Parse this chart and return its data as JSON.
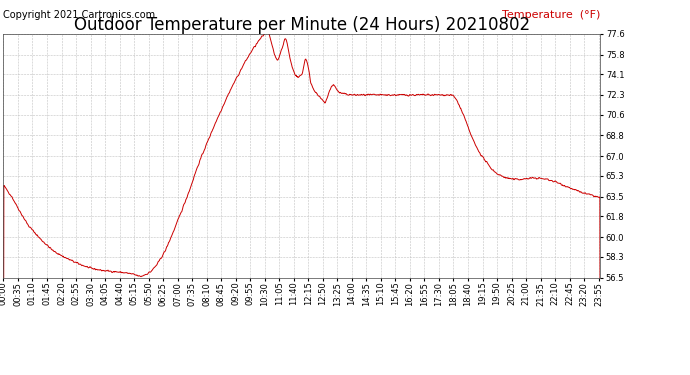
{
  "title": "Outdoor Temperature per Minute (24 Hours) 20210802",
  "copyright": "Copyright 2021 Cartronics.com",
  "legend_label": "Temperature  (°F)",
  "line_color": "#cc0000",
  "background_color": "#ffffff",
  "grid_color": "#bbbbbb",
  "ylim": [
    56.5,
    77.6
  ],
  "yticks": [
    56.5,
    58.3,
    60.0,
    61.8,
    63.5,
    65.3,
    67.0,
    68.8,
    70.6,
    72.3,
    74.1,
    75.8,
    77.6
  ],
  "title_fontsize": 12,
  "copyright_fontsize": 7,
  "legend_fontsize": 8,
  "tick_fontsize": 6,
  "waypoints": [
    [
      0,
      64.5
    ],
    [
      20,
      63.5
    ],
    [
      40,
      62.2
    ],
    [
      60,
      61.0
    ],
    [
      90,
      59.8
    ],
    [
      120,
      58.8
    ],
    [
      150,
      58.2
    ],
    [
      180,
      57.7
    ],
    [
      210,
      57.3
    ],
    [
      240,
      57.1
    ],
    [
      270,
      57.0
    ],
    [
      295,
      56.9
    ],
    [
      310,
      56.8
    ],
    [
      320,
      56.7
    ],
    [
      328,
      56.6
    ],
    [
      333,
      56.6
    ],
    [
      338,
      56.7
    ],
    [
      345,
      56.8
    ],
    [
      355,
      57.0
    ],
    [
      370,
      57.6
    ],
    [
      390,
      58.8
    ],
    [
      410,
      60.5
    ],
    [
      430,
      62.3
    ],
    [
      450,
      64.2
    ],
    [
      465,
      65.8
    ],
    [
      480,
      67.2
    ],
    [
      495,
      68.5
    ],
    [
      510,
      69.8
    ],
    [
      525,
      71.0
    ],
    [
      540,
      72.2
    ],
    [
      555,
      73.3
    ],
    [
      570,
      74.3
    ],
    [
      580,
      75.0
    ],
    [
      590,
      75.6
    ],
    [
      600,
      76.2
    ],
    [
      610,
      76.7
    ],
    [
      618,
      77.1
    ],
    [
      625,
      77.4
    ],
    [
      630,
      77.6
    ],
    [
      635,
      77.7
    ],
    [
      638,
      77.8
    ],
    [
      641,
      77.5
    ],
    [
      645,
      77.0
    ],
    [
      649,
      76.4
    ],
    [
      653,
      75.8
    ],
    [
      657,
      75.5
    ],
    [
      661,
      75.3
    ],
    [
      665,
      75.6
    ],
    [
      669,
      76.1
    ],
    [
      673,
      76.5
    ],
    [
      677,
      77.0
    ],
    [
      681,
      77.2
    ],
    [
      684,
      76.8
    ],
    [
      687,
      76.2
    ],
    [
      690,
      75.6
    ],
    [
      694,
      75.0
    ],
    [
      698,
      74.5
    ],
    [
      703,
      74.1
    ],
    [
      710,
      73.8
    ],
    [
      720,
      74.1
    ],
    [
      728,
      75.5
    ],
    [
      732,
      75.2
    ],
    [
      736,
      74.5
    ],
    [
      740,
      73.5
    ],
    [
      745,
      73.0
    ],
    [
      750,
      72.7
    ],
    [
      755,
      72.4
    ],
    [
      760,
      72.2
    ],
    [
      765,
      72.0
    ],
    [
      770,
      71.8
    ],
    [
      775,
      71.6
    ],
    [
      780,
      72.0
    ],
    [
      785,
      72.5
    ],
    [
      790,
      73.0
    ],
    [
      795,
      73.2
    ],
    [
      800,
      73.0
    ],
    [
      805,
      72.7
    ],
    [
      810,
      72.5
    ],
    [
      820,
      72.4
    ],
    [
      840,
      72.3
    ],
    [
      860,
      72.3
    ],
    [
      880,
      72.3
    ],
    [
      900,
      72.3
    ],
    [
      930,
      72.3
    ],
    [
      960,
      72.3
    ],
    [
      990,
      72.3
    ],
    [
      1020,
      72.3
    ],
    [
      1050,
      72.3
    ],
    [
      1070,
      72.3
    ],
    [
      1080,
      72.3
    ],
    [
      1085,
      72.2
    ],
    [
      1090,
      72.0
    ],
    [
      1095,
      71.7
    ],
    [
      1100,
      71.3
    ],
    [
      1110,
      70.5
    ],
    [
      1120,
      69.5
    ],
    [
      1130,
      68.6
    ],
    [
      1140,
      67.8
    ],
    [
      1150,
      67.2
    ],
    [
      1160,
      66.7
    ],
    [
      1170,
      66.2
    ],
    [
      1180,
      65.8
    ],
    [
      1190,
      65.5
    ],
    [
      1200,
      65.3
    ],
    [
      1215,
      65.1
    ],
    [
      1230,
      65.0
    ],
    [
      1250,
      65.0
    ],
    [
      1270,
      65.1
    ],
    [
      1290,
      65.1
    ],
    [
      1310,
      65.0
    ],
    [
      1330,
      64.8
    ],
    [
      1350,
      64.5
    ],
    [
      1370,
      64.2
    ],
    [
      1390,
      63.9
    ],
    [
      1410,
      63.7
    ],
    [
      1430,
      63.5
    ],
    [
      1439,
      63.4
    ]
  ]
}
